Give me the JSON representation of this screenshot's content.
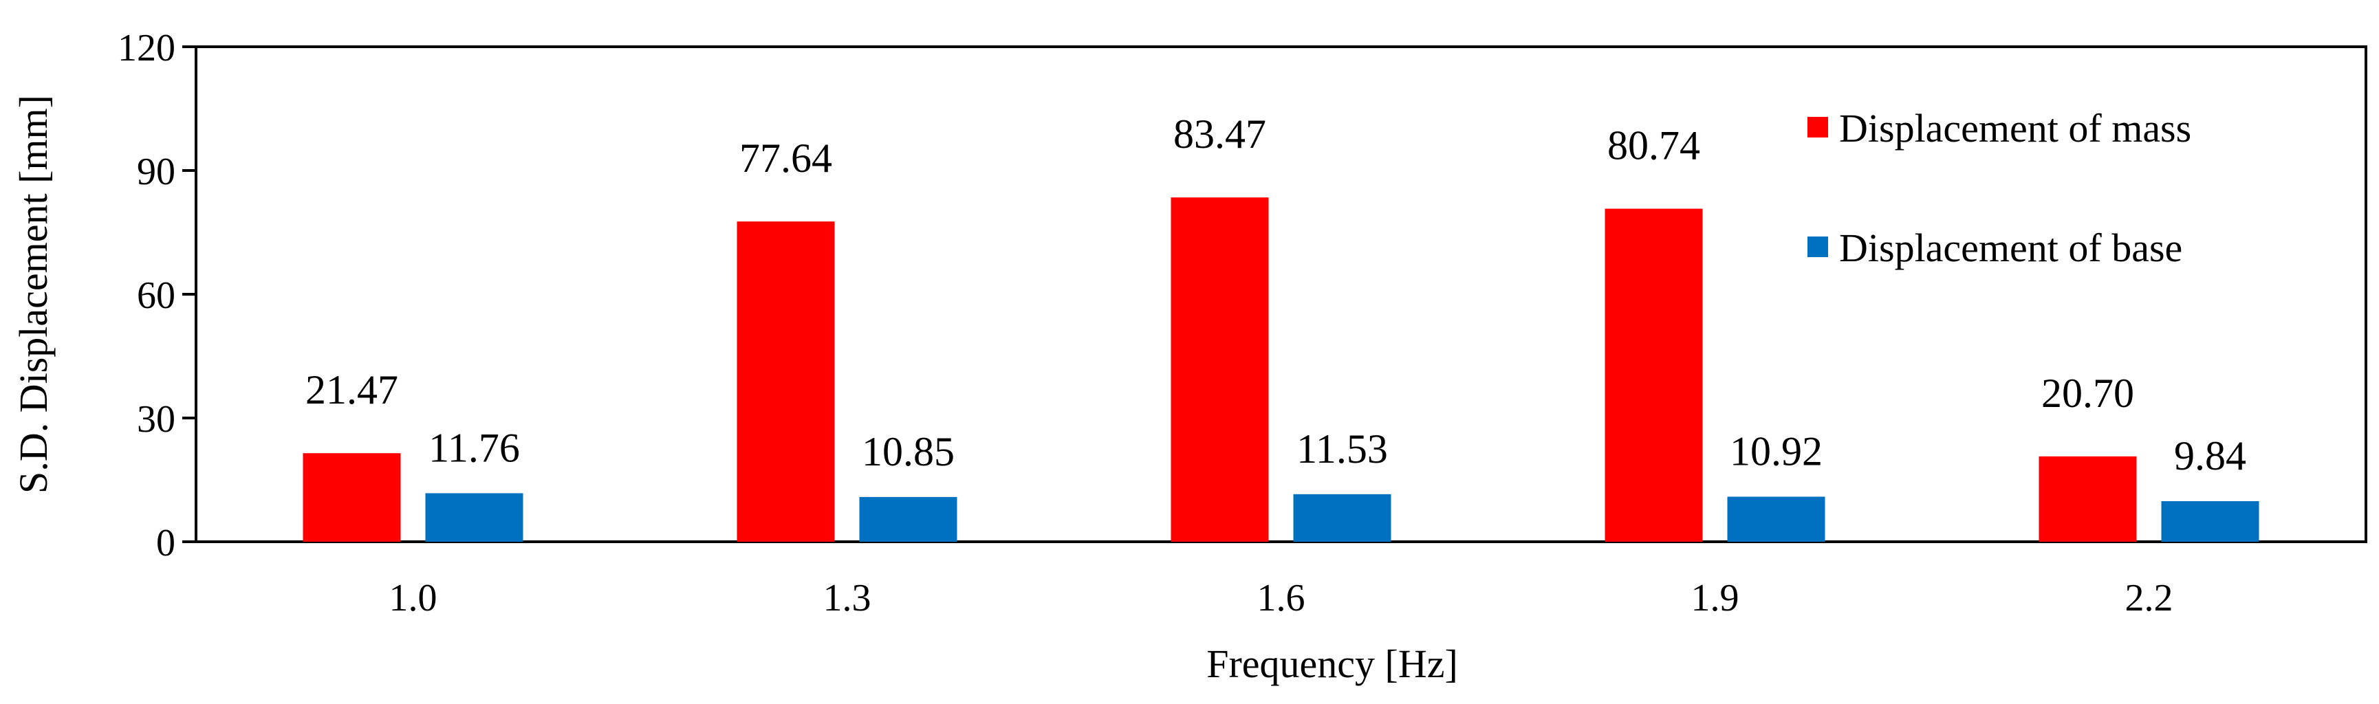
{
  "chart_data": {
    "type": "bar",
    "title": "",
    "xlabel": "Frequency [Hz]",
    "ylabel": "S.D. Displacement [mm]",
    "categories": [
      "1.0",
      "1.3",
      "1.6",
      "1.9",
      "2.2"
    ],
    "ylim": [
      0,
      120
    ],
    "yticks": [
      "0",
      "30",
      "60",
      "90",
      "120"
    ],
    "grid": false,
    "legend_position": "top-right",
    "series": [
      {
        "name": "Displacement of mass",
        "color": "#ff0000",
        "values": [
          21.47,
          77.64,
          83.47,
          80.74,
          20.7
        ],
        "labels": [
          "21.47",
          "77.64",
          "83.47",
          "80.74",
          "20.70"
        ]
      },
      {
        "name": "Displacement of base",
        "color": "#0070c0",
        "values": [
          11.76,
          10.85,
          11.53,
          10.92,
          9.84
        ],
        "labels": [
          "11.76",
          "10.85",
          "11.53",
          "10.92",
          "9.84"
        ]
      }
    ]
  }
}
